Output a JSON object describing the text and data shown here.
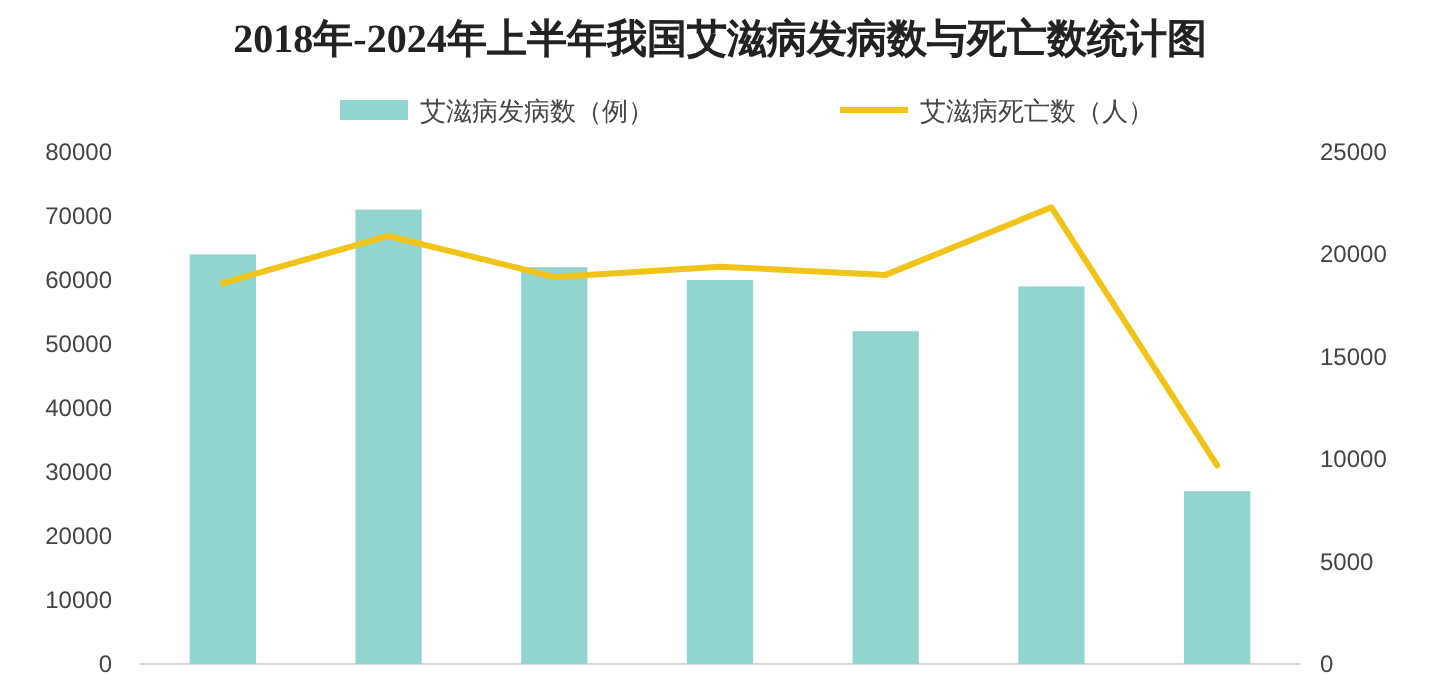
{
  "chart_data": {
    "type": "bar",
    "title": "2018年-2024年上半年我国艾滋病发病数与死亡数统计图",
    "categories": [
      null,
      null,
      null,
      null,
      null,
      null,
      null
    ],
    "series": [
      {
        "name": "艾滋病发病数（例）",
        "color": "#92d5ce",
        "values": [
          64000,
          71000,
          62000,
          60000,
          52000,
          59000,
          27000
        ]
      },
      {
        "name": "艾滋病死亡数（人）",
        "type": "line",
        "axis": "y2",
        "color": "#f2c318",
        "values": [
          18600,
          20900,
          18900,
          19400,
          19000,
          22300,
          9700
        ]
      }
    ],
    "ylim": [
      0,
      80000
    ],
    "yticks": [
      0,
      10000,
      20000,
      30000,
      40000,
      50000,
      60000,
      70000,
      80000
    ],
    "y2lim": [
      0,
      25000
    ],
    "y2ticks": [
      0,
      5000,
      10000,
      15000,
      20000,
      25000
    ],
    "grid": false,
    "legend": "top",
    "marker": "none",
    "line_style": "solid"
  }
}
